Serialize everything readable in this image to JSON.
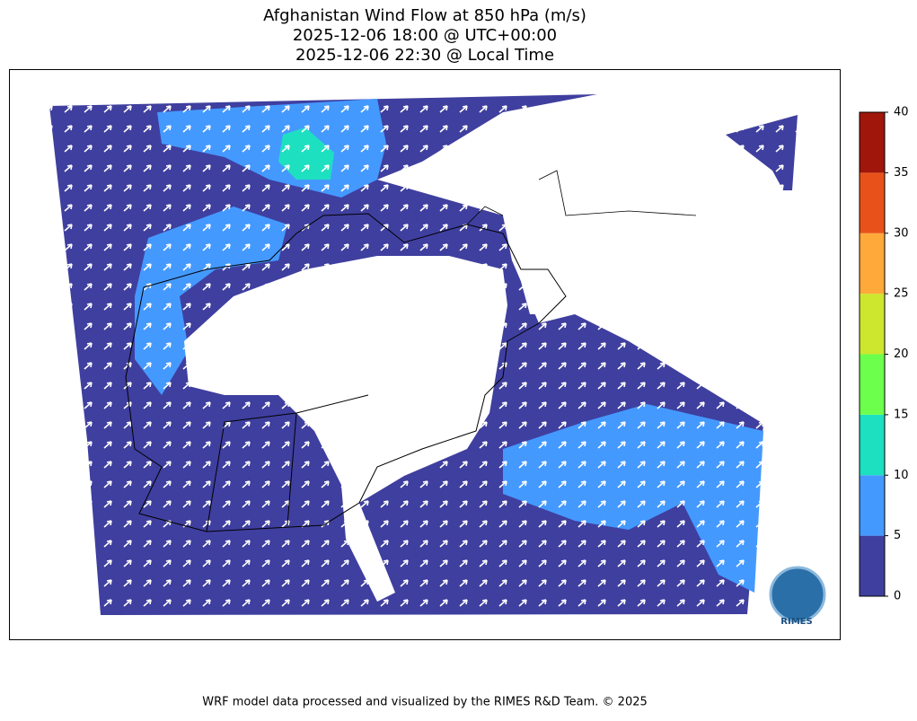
{
  "header": {
    "title": [
      "Afghanistan Wind Flow at 850 hPa (m/s)",
      "2025-12-06 18:00 @ UTC+00:00",
      "2025-12-06 22:30 @ Local Time"
    ]
  },
  "colorbar": {
    "ticks": [
      0,
      5,
      10,
      15,
      20,
      25,
      30,
      35,
      40
    ],
    "colors": [
      "#3f3f9f",
      "#4499ff",
      "#1de0c0",
      "#6cff4c",
      "#cde62e",
      "#ffa93a",
      "#e8521a",
      "#a0160a"
    ]
  },
  "logo": "RIMES",
  "footer": "WRF model data processed and visualized by the RIMES R&D Team. © 2025"
}
